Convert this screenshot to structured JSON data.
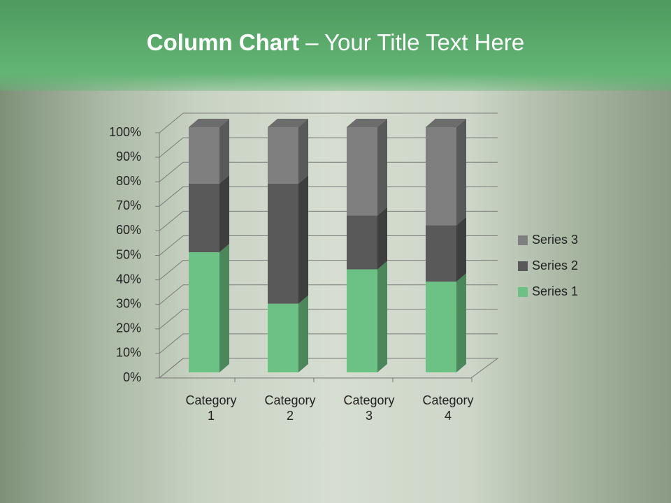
{
  "chart_data": {
    "type": "stacked_bar_3d",
    "title_bold": "Column Chart",
    "title_rest": "– Your Title Text Here",
    "categories": [
      "Category 1",
      "Category 2",
      "Category 3",
      "Category 4"
    ],
    "series": [
      {
        "name": "Series 1",
        "color": "#6cc184",
        "values": [
          49,
          28,
          42,
          37
        ]
      },
      {
        "name": "Series 2",
        "color": "#595959",
        "values": [
          28,
          49,
          22,
          23
        ]
      },
      {
        "name": "Series 3",
        "color": "#7f7f7f",
        "values": [
          23,
          23,
          36,
          40
        ]
      }
    ],
    "ylim": [
      0,
      100
    ],
    "yticks": [
      {
        "value": 0,
        "label": "0%"
      },
      {
        "value": 10,
        "label": "10%"
      },
      {
        "value": 20,
        "label": "20%"
      },
      {
        "value": 30,
        "label": "30%"
      },
      {
        "value": 40,
        "label": "40%"
      },
      {
        "value": 50,
        "label": "50%"
      },
      {
        "value": 60,
        "label": "60%"
      },
      {
        "value": 70,
        "label": "70%"
      },
      {
        "value": 80,
        "label": "80%"
      },
      {
        "value": 90,
        "label": "90%"
      },
      {
        "value": 100,
        "label": "100%"
      }
    ],
    "grid": true,
    "legend": "right"
  }
}
